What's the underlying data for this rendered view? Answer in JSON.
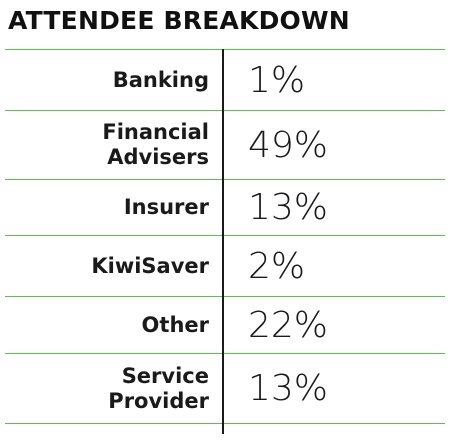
{
  "title": "ATTENDEE BREAKDOWN",
  "rows": [
    {
      "label": "Banking",
      "value": "1%"
    },
    {
      "label": "Financial\nAdvisers",
      "value": "49%"
    },
    {
      "label": "Insurer",
      "value": "13%"
    },
    {
      "label": "KiwiSaver",
      "value": "2%"
    },
    {
      "label": "Other",
      "value": "22%"
    },
    {
      "label": "Service\nProvider",
      "value": "13%"
    }
  ],
  "colors": {
    "rule": "#5cc24f",
    "text": "#1a1a1a"
  }
}
